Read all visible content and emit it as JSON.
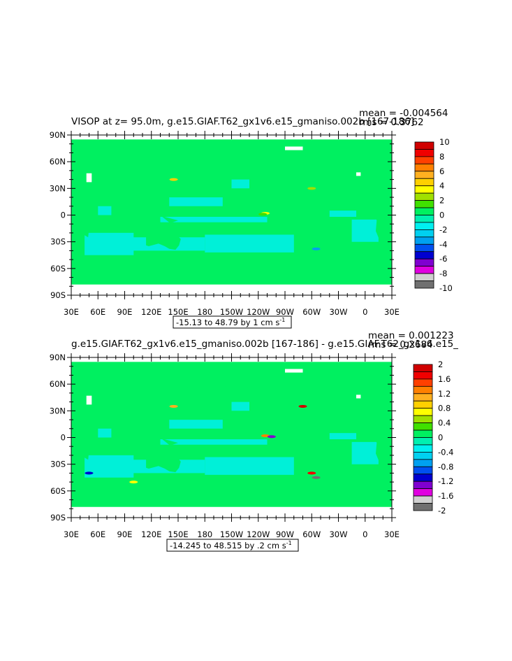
{
  "page_background": "#ffffff",
  "chart_data": [
    {
      "type": "heatmap",
      "title": "VISOP at z=  95.0m, g.e15.GIAF.T62_gx1v6.e15_gmaniso.002b [167-186]",
      "stats": {
        "mean": "mean = -0.004564",
        "rms": "rms = 0.3762"
      },
      "range_label": "-15.13 to 48.79 by 1 cm s",
      "range_label_sup": "-1",
      "x_ticks": [
        "30E",
        "60E",
        "90E",
        "120E",
        "150E",
        "180",
        "150W",
        "120W",
        "90W",
        "60W",
        "30W",
        "0",
        "30E"
      ],
      "y_ticks": [
        "90N",
        "60N",
        "30N",
        "0",
        "30S",
        "60S",
        "90S"
      ],
      "colorbar": {
        "labels": [
          "10",
          "8",
          "6",
          "4",
          "2",
          "0",
          "-2",
          "-4",
          "-6",
          "-8",
          "-10"
        ],
        "colors": [
          "#d00000",
          "#f00000",
          "#ff4000",
          "#ff8000",
          "#ffb020",
          "#ffd000",
          "#ffff00",
          "#a0e000",
          "#40e000",
          "#00f060",
          "#00f0b0",
          "#00f0f0",
          "#00d0f0",
          "#00a0f0",
          "#0050f0",
          "#0000d0",
          "#8000d0",
          "#e000e0",
          "#d0d0d0",
          "#707070"
        ]
      },
      "field_colors": {
        "ocean_positive": "#00f060",
        "ocean_negative": "#00f0d8",
        "land": "#ffffff"
      },
      "extremes": {
        "min": -15.13,
        "max": 48.79
      },
      "extreme_spots": [
        {
          "lon": -112,
          "lat": 2,
          "value": 4
        },
        {
          "lon": -115,
          "lat": 1,
          "value": 2
        },
        {
          "lon": -60,
          "lat": 30,
          "value": 3
        },
        {
          "lon": -55,
          "lat": -38,
          "value": -3
        },
        {
          "lon": 145,
          "lat": 40,
          "value": 5
        }
      ]
    },
    {
      "type": "heatmap",
      "title": "g.e15.GIAF.T62_gx1v6.e15_gmaniso.002b [167-186] - g.e15.GIAF.T62_gx1v6.e15_",
      "stats": {
        "mean": "mean = 0.001223",
        "rms": "rms = 0.2684"
      },
      "range_label": "-14.245 to 48.515 by .2 cm s",
      "range_label_sup": "-1",
      "x_ticks": [
        "30E",
        "60E",
        "90E",
        "120E",
        "150E",
        "180",
        "150W",
        "120W",
        "90W",
        "60W",
        "30W",
        "0",
        "30E"
      ],
      "y_ticks": [
        "90N",
        "60N",
        "30N",
        "0",
        "30S",
        "60S",
        "90S"
      ],
      "colorbar": {
        "labels": [
          "2",
          "1.6",
          "1.2",
          "0.8",
          "0.4",
          "0",
          "-0.4",
          "-0.8",
          "-1.2",
          "-1.6",
          "-2"
        ],
        "colors": [
          "#d00000",
          "#f00000",
          "#ff4000",
          "#ff8000",
          "#ffb020",
          "#ffd000",
          "#ffff00",
          "#a0e000",
          "#40e000",
          "#00f060",
          "#00f0b0",
          "#00f0f0",
          "#00d0f0",
          "#00a0f0",
          "#0050f0",
          "#0000d0",
          "#8000d0",
          "#e000e0",
          "#d0d0d0",
          "#707070"
        ]
      },
      "field_colors": {
        "ocean_positive": "#00f060",
        "ocean_negative": "#00f0d8",
        "land": "#ffffff"
      },
      "extremes": {
        "min": -14.245,
        "max": 48.515
      },
      "extreme_spots": [
        {
          "lon": -112,
          "lat": 2,
          "value": 1.4
        },
        {
          "lon": -105,
          "lat": 1,
          "value": -1.2
        },
        {
          "lon": -70,
          "lat": 35,
          "value": 1.8
        },
        {
          "lon": -55,
          "lat": -45,
          "value": -1.8
        },
        {
          "lon": -60,
          "lat": -40,
          "value": 1.6
        },
        {
          "lon": 145,
          "lat": 35,
          "value": 1.2
        },
        {
          "lon": 50,
          "lat": -40,
          "value": -1.0
        },
        {
          "lon": 100,
          "lat": -50,
          "value": 0.8
        }
      ]
    }
  ]
}
